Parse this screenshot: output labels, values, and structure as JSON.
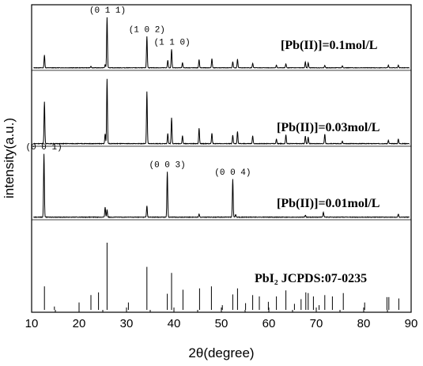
{
  "chart_data": {
    "type": "line",
    "title": "",
    "xlabel": "2θ(degree)",
    "ylabel": "intensity(a.u.)",
    "xlim": [
      10,
      90
    ],
    "x_ticks": [
      10,
      20,
      30,
      40,
      50,
      60,
      70,
      80,
      90
    ],
    "ylim": [
      0,
      1
    ],
    "grid": false,
    "legend": "none",
    "series": [
      {
        "label": "[Pb(II)]=0.1mol/L",
        "peaks": [
          {
            "x": 12.7,
            "h": 0.25
          },
          {
            "x": 22.5,
            "h": 0.03
          },
          {
            "x": 25.5,
            "h": 0.06
          },
          {
            "x": 25.9,
            "h": 1.0
          },
          {
            "x": 34.3,
            "h": 0.62
          },
          {
            "x": 38.7,
            "h": 0.15
          },
          {
            "x": 39.5,
            "h": 0.37
          },
          {
            "x": 41.8,
            "h": 0.1
          },
          {
            "x": 45.3,
            "h": 0.16
          },
          {
            "x": 48.0,
            "h": 0.18
          },
          {
            "x": 52.4,
            "h": 0.12
          },
          {
            "x": 53.4,
            "h": 0.17
          },
          {
            "x": 56.6,
            "h": 0.09
          },
          {
            "x": 61.6,
            "h": 0.05
          },
          {
            "x": 63.6,
            "h": 0.08
          },
          {
            "x": 67.7,
            "h": 0.12
          },
          {
            "x": 68.3,
            "h": 0.1
          },
          {
            "x": 71.8,
            "h": 0.05
          },
          {
            "x": 75.5,
            "h": 0.04
          },
          {
            "x": 85.2,
            "h": 0.05
          },
          {
            "x": 87.3,
            "h": 0.05
          }
        ]
      },
      {
        "label": "[Pb(II)]=0.03mol/L",
        "peaks": [
          {
            "x": 12.7,
            "h": 0.65
          },
          {
            "x": 25.5,
            "h": 0.15
          },
          {
            "x": 25.9,
            "h": 1.0
          },
          {
            "x": 34.3,
            "h": 0.8
          },
          {
            "x": 38.7,
            "h": 0.16
          },
          {
            "x": 39.5,
            "h": 0.4
          },
          {
            "x": 41.8,
            "h": 0.12
          },
          {
            "x": 45.3,
            "h": 0.24
          },
          {
            "x": 48.0,
            "h": 0.16
          },
          {
            "x": 52.4,
            "h": 0.13
          },
          {
            "x": 53.4,
            "h": 0.19
          },
          {
            "x": 56.6,
            "h": 0.12
          },
          {
            "x": 61.6,
            "h": 0.07
          },
          {
            "x": 63.6,
            "h": 0.14
          },
          {
            "x": 67.7,
            "h": 0.12
          },
          {
            "x": 68.3,
            "h": 0.1
          },
          {
            "x": 71.8,
            "h": 0.15
          },
          {
            "x": 75.5,
            "h": 0.04
          },
          {
            "x": 85.2,
            "h": 0.05
          },
          {
            "x": 87.3,
            "h": 0.07
          }
        ]
      },
      {
        "label": "[Pb(II)]=0.01mol/L",
        "peaks": [
          {
            "x": 12.6,
            "h": 1.0
          },
          {
            "x": 25.5,
            "h": 0.16
          },
          {
            "x": 25.9,
            "h": 0.12
          },
          {
            "x": 34.3,
            "h": 0.18
          },
          {
            "x": 38.6,
            "h": 0.72
          },
          {
            "x": 45.3,
            "h": 0.05
          },
          {
            "x": 52.4,
            "h": 0.6
          },
          {
            "x": 53.0,
            "h": 0.04
          },
          {
            "x": 67.7,
            "h": 0.03
          },
          {
            "x": 71.5,
            "h": 0.08
          },
          {
            "x": 87.3,
            "h": 0.05
          }
        ]
      },
      {
        "label": "PbI₂ JCPDS:07-0235",
        "sticks": [
          {
            "x": 12.7,
            "h": 0.35
          },
          {
            "x": 14.8,
            "h": 0.05
          },
          {
            "x": 20.0,
            "h": 0.11
          },
          {
            "x": 22.5,
            "h": 0.22
          },
          {
            "x": 24.1,
            "h": 0.26
          },
          {
            "x": 25.9,
            "h": 1.0
          },
          {
            "x": 30.4,
            "h": 0.11
          },
          {
            "x": 34.3,
            "h": 0.64
          },
          {
            "x": 38.6,
            "h": 0.24
          },
          {
            "x": 39.5,
            "h": 0.55
          },
          {
            "x": 41.9,
            "h": 0.3
          },
          {
            "x": 45.4,
            "h": 0.32
          },
          {
            "x": 47.9,
            "h": 0.35
          },
          {
            "x": 50.2,
            "h": 0.07
          },
          {
            "x": 52.4,
            "h": 0.23
          },
          {
            "x": 53.4,
            "h": 0.32
          },
          {
            "x": 55.1,
            "h": 0.1
          },
          {
            "x": 56.6,
            "h": 0.22
          },
          {
            "x": 58.0,
            "h": 0.2
          },
          {
            "x": 59.9,
            "h": 0.12
          },
          {
            "x": 61.6,
            "h": 0.2
          },
          {
            "x": 63.6,
            "h": 0.29
          },
          {
            "x": 65.4,
            "h": 0.09
          },
          {
            "x": 66.8,
            "h": 0.16
          },
          {
            "x": 67.8,
            "h": 0.26
          },
          {
            "x": 68.3,
            "h": 0.25
          },
          {
            "x": 69.4,
            "h": 0.2
          },
          {
            "x": 70.6,
            "h": 0.07
          },
          {
            "x": 71.8,
            "h": 0.22
          },
          {
            "x": 73.4,
            "h": 0.2
          },
          {
            "x": 75.7,
            "h": 0.25
          },
          {
            "x": 80.2,
            "h": 0.11
          },
          {
            "x": 84.9,
            "h": 0.19
          },
          {
            "x": 85.3,
            "h": 0.19
          },
          {
            "x": 87.4,
            "h": 0.17
          }
        ]
      }
    ],
    "annotations": [
      {
        "text": "(0 1 1)",
        "x": 26.0,
        "series": 0
      },
      {
        "text": "(1 0 2)",
        "x": 34.3,
        "series": 0
      },
      {
        "text": "(1 1 0)",
        "x": 39.6,
        "series": 0
      },
      {
        "text": "(0 0 1)",
        "x": 12.6,
        "series": 2
      },
      {
        "text": "(0 0 3)",
        "x": 38.6,
        "series": 2
      },
      {
        "text": "(0 0 4)",
        "x": 52.4,
        "series": 2
      }
    ]
  }
}
